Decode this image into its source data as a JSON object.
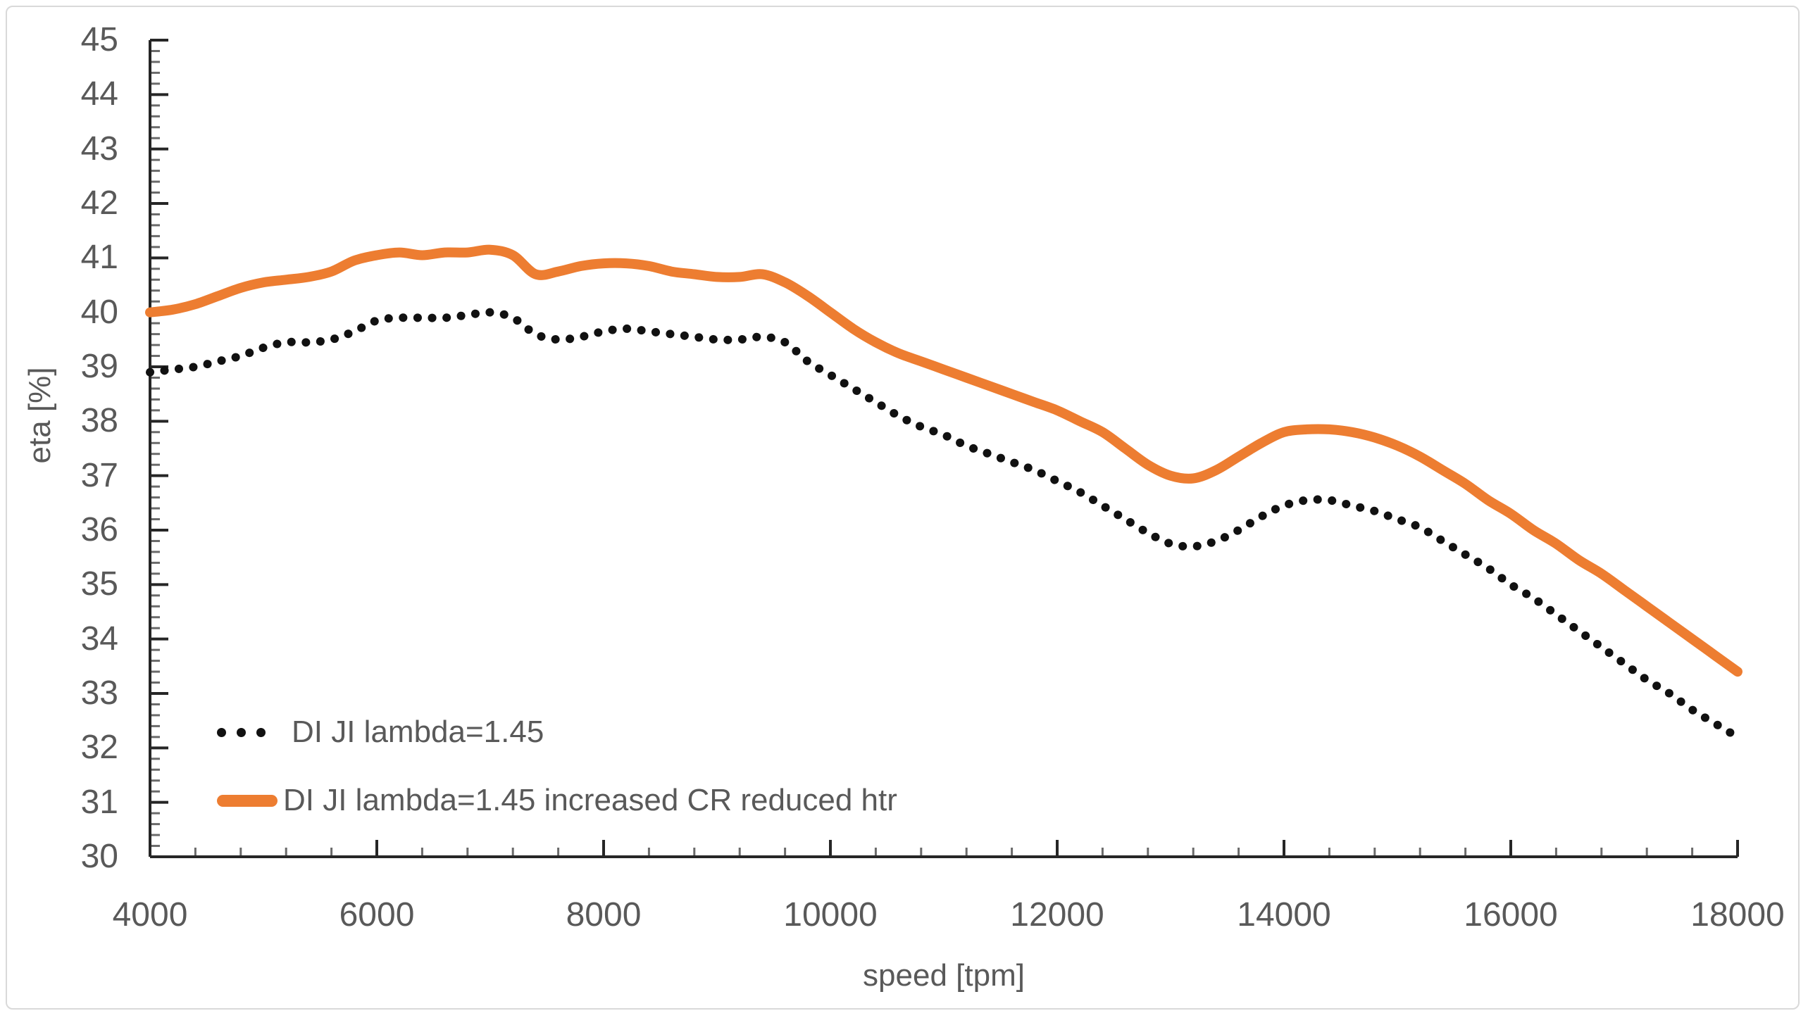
{
  "chart_data": {
    "type": "line",
    "title": "",
    "xlabel": "speed [tpm]",
    "ylabel": "eta [%]",
    "xlim": [
      4000,
      18000
    ],
    "ylim": [
      30,
      45
    ],
    "x_major_ticks": [
      4000,
      6000,
      8000,
      10000,
      12000,
      14000,
      16000,
      18000
    ],
    "x_minor_step": 400,
    "y_major_ticks": [
      30,
      31,
      32,
      33,
      34,
      35,
      36,
      37,
      38,
      39,
      40,
      41,
      42,
      43,
      44,
      45
    ],
    "y_minor_step": 0.2,
    "grid": "off",
    "legend_position": "inside-bottom-left",
    "x": [
      4000,
      4200,
      4400,
      4600,
      4800,
      5000,
      5200,
      5400,
      5600,
      5800,
      6000,
      6200,
      6400,
      6600,
      6800,
      7000,
      7200,
      7400,
      7600,
      7800,
      8000,
      8200,
      8400,
      8600,
      8800,
      9000,
      9200,
      9400,
      9600,
      9800,
      10000,
      10200,
      10400,
      10600,
      10800,
      11000,
      11200,
      11400,
      11600,
      11800,
      12000,
      12200,
      12400,
      12600,
      12800,
      13000,
      13200,
      13400,
      13600,
      13800,
      14000,
      14200,
      14400,
      14600,
      14800,
      15000,
      15200,
      15400,
      15600,
      15800,
      16000,
      16200,
      16400,
      16600,
      16800,
      17000,
      17200,
      17400,
      17600,
      17800,
      18000
    ],
    "series": [
      {
        "name": "DI JI lambda=1.45",
        "style": "dotted",
        "color": "#111111",
        "values": [
          38.9,
          38.95,
          39.0,
          39.1,
          39.2,
          39.35,
          39.45,
          39.45,
          39.5,
          39.65,
          39.85,
          39.9,
          39.9,
          39.9,
          39.95,
          40.0,
          39.9,
          39.6,
          39.5,
          39.55,
          39.65,
          39.7,
          39.65,
          39.6,
          39.55,
          39.5,
          39.5,
          39.55,
          39.45,
          39.1,
          38.85,
          38.6,
          38.35,
          38.1,
          37.9,
          37.75,
          37.55,
          37.4,
          37.25,
          37.1,
          36.9,
          36.7,
          36.45,
          36.2,
          35.95,
          35.75,
          35.7,
          35.8,
          36.0,
          36.25,
          36.45,
          36.55,
          36.55,
          36.45,
          36.35,
          36.2,
          36.05,
          35.8,
          35.55,
          35.3,
          35.0,
          34.75,
          34.45,
          34.15,
          33.85,
          33.55,
          33.25,
          33.0,
          32.7,
          32.45,
          32.2
        ]
      },
      {
        "name": "DI JI lambda=1.45 increased CR reduced htr",
        "style": "solid",
        "color": "#ED7D31",
        "values": [
          40.0,
          40.05,
          40.15,
          40.3,
          40.45,
          40.55,
          40.6,
          40.65,
          40.75,
          40.95,
          41.05,
          41.1,
          41.05,
          41.1,
          41.1,
          41.15,
          41.05,
          40.7,
          40.75,
          40.85,
          40.9,
          40.9,
          40.85,
          40.75,
          40.7,
          40.65,
          40.65,
          40.7,
          40.55,
          40.3,
          40.0,
          39.7,
          39.45,
          39.25,
          39.1,
          38.95,
          38.8,
          38.65,
          38.5,
          38.35,
          38.2,
          38.0,
          37.8,
          37.5,
          37.2,
          37.0,
          36.95,
          37.1,
          37.35,
          37.6,
          37.8,
          37.85,
          37.85,
          37.8,
          37.7,
          37.55,
          37.35,
          37.1,
          36.85,
          36.55,
          36.3,
          36.0,
          35.75,
          35.45,
          35.2,
          34.9,
          34.6,
          34.3,
          34.0,
          33.7,
          33.4
        ]
      }
    ]
  },
  "axes": {
    "x_title": "speed [tpm]",
    "y_title": "eta [%]",
    "line_color": "#262626",
    "minor_tick_color": "#6a6a6a",
    "label_color": "#595959"
  },
  "legend": {
    "entries": [
      {
        "label": "DI JI lambda=1.45",
        "marker": "dots",
        "color": "#111111"
      },
      {
        "label": "DI JI lambda=1.45 increased CR reduced htr",
        "marker": "line",
        "color": "#ED7D31"
      }
    ]
  },
  "frame": {
    "border_color": "#d9d9d9",
    "background": "#ffffff"
  }
}
